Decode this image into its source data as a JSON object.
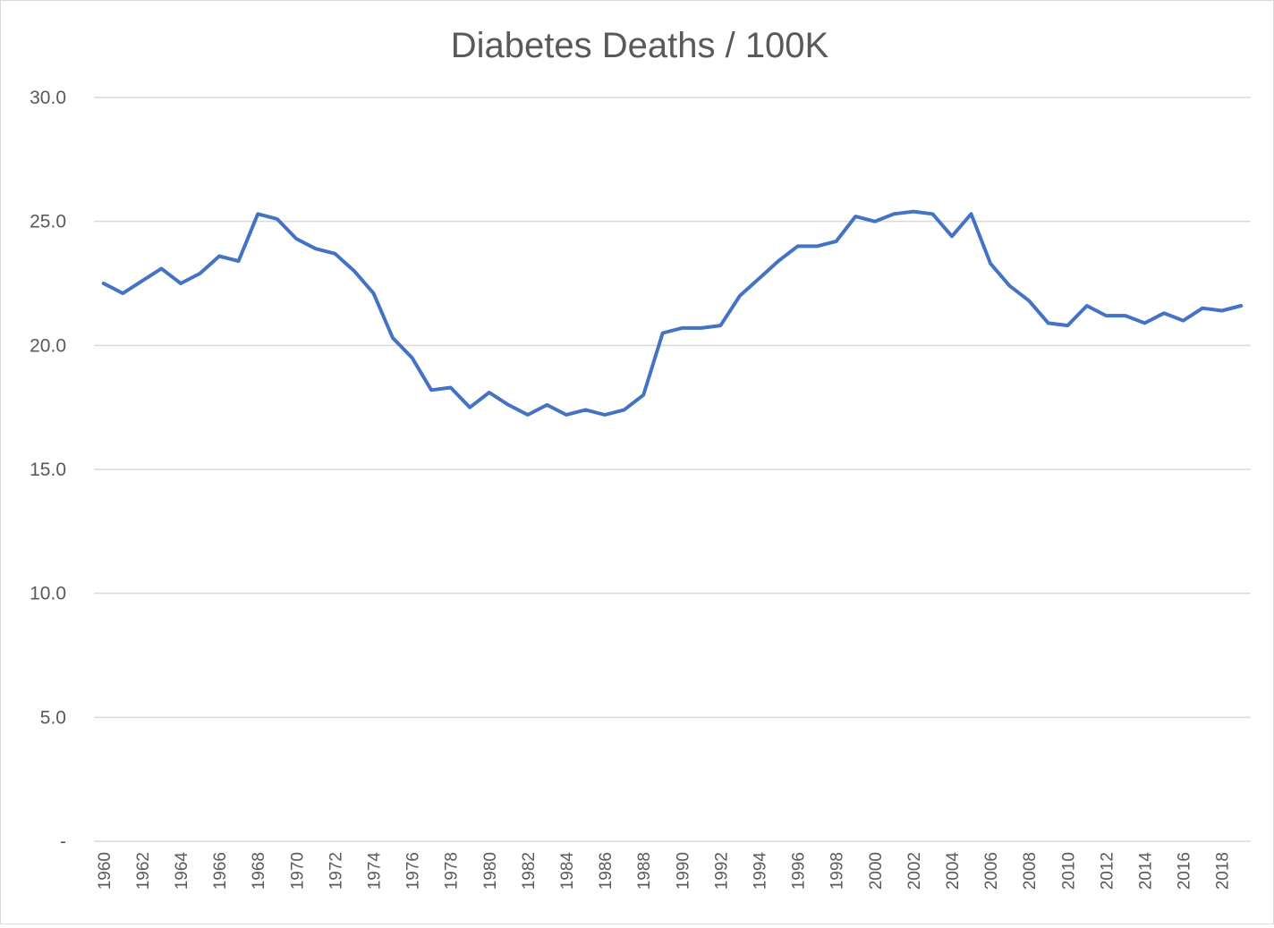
{
  "chart_data": {
    "type": "line",
    "title": "Diabetes Deaths / 100K",
    "xlabel": "",
    "ylabel": "",
    "ylim": [
      0,
      30
    ],
    "y_ticks": [
      0,
      5,
      10,
      15,
      20,
      25,
      30
    ],
    "y_tick_labels": [
      "-",
      "5.0",
      "10.0",
      "15.0",
      "20.0",
      "25.0",
      "30.0"
    ],
    "grid": true,
    "legend": "none",
    "line_color": "#4472C4",
    "categories": [
      1960,
      1961,
      1962,
      1963,
      1964,
      1965,
      1966,
      1967,
      1968,
      1969,
      1970,
      1971,
      1972,
      1973,
      1974,
      1975,
      1976,
      1977,
      1978,
      1979,
      1980,
      1981,
      1982,
      1983,
      1984,
      1985,
      1986,
      1987,
      1988,
      1989,
      1990,
      1991,
      1992,
      1993,
      1994,
      1995,
      1996,
      1997,
      1998,
      1999,
      2000,
      2001,
      2002,
      2003,
      2004,
      2005,
      2006,
      2007,
      2008,
      2009,
      2010,
      2011,
      2012,
      2013,
      2014,
      2015,
      2016,
      2017,
      2018,
      2019
    ],
    "x_tick_labels": [
      "1960",
      "1962",
      "1964",
      "1966",
      "1968",
      "1970",
      "1972",
      "1974",
      "1976",
      "1978",
      "1980",
      "1982",
      "1984",
      "1986",
      "1988",
      "1990",
      "1992",
      "1994",
      "1996",
      "1998",
      "2000",
      "2002",
      "2004",
      "2006",
      "2008",
      "2010",
      "2012",
      "2014",
      "2016",
      "2018"
    ],
    "values": [
      22.5,
      22.1,
      22.6,
      23.1,
      22.5,
      22.9,
      23.6,
      23.4,
      25.3,
      25.1,
      24.3,
      23.9,
      23.7,
      23.0,
      22.1,
      20.3,
      19.5,
      18.2,
      18.3,
      17.5,
      18.1,
      17.6,
      17.2,
      17.6,
      17.2,
      17.4,
      17.2,
      17.4,
      18.0,
      20.5,
      20.7,
      20.7,
      20.8,
      22.0,
      22.7,
      23.4,
      24.0,
      24.0,
      24.2,
      25.2,
      25.0,
      25.3,
      25.4,
      25.3,
      24.4,
      25.3,
      23.3,
      22.4,
      21.8,
      20.9,
      20.8,
      21.6,
      21.2,
      21.2,
      20.9,
      21.3,
      21.0,
      21.5,
      21.4,
      21.6
    ]
  }
}
